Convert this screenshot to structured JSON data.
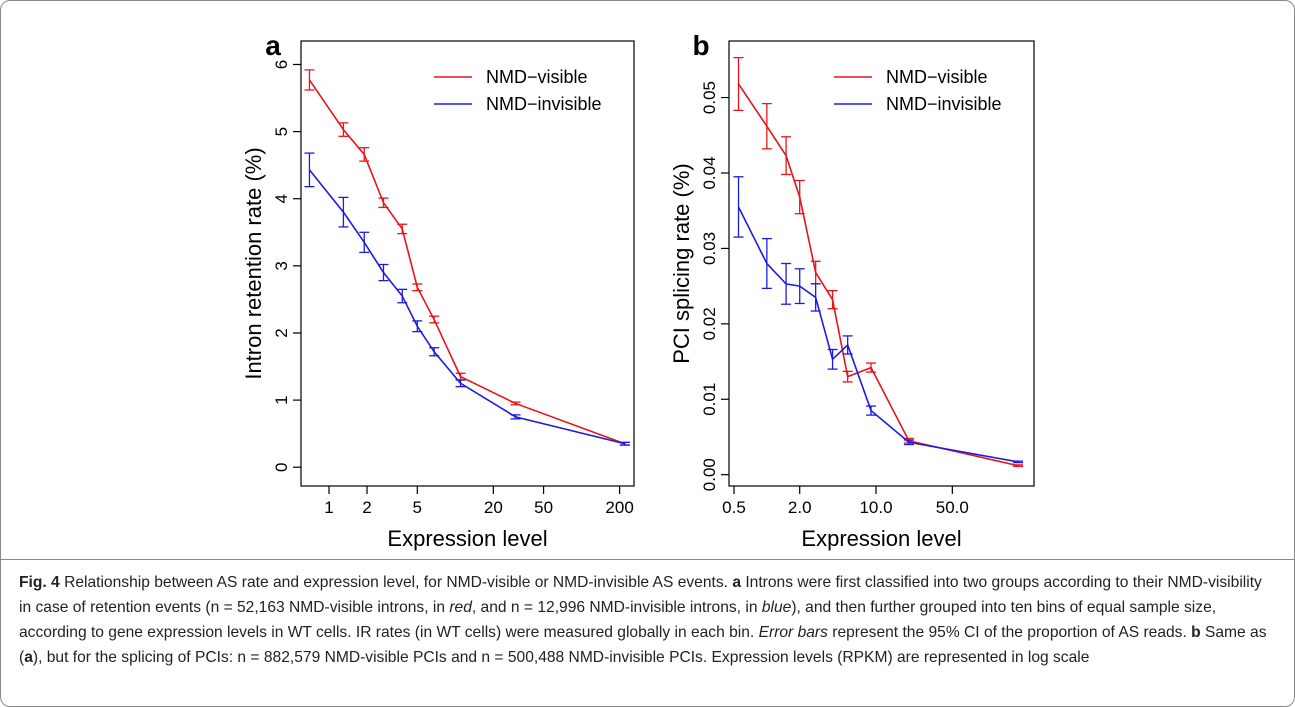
{
  "chart_data": [
    {
      "type": "line",
      "panel_label": "a",
      "y_label": "Intron retention rate (%)",
      "x_label": "Expression level",
      "x": [
        0.7,
        1.3,
        1.9,
        2.7,
        3.8,
        5.0,
        6.8,
        11,
        30,
        220
      ],
      "series": [
        {
          "name": "NMD−visible",
          "color": "#e8141c",
          "values": [
            5.77,
            5.03,
            4.66,
            3.94,
            3.55,
            2.68,
            2.2,
            1.35,
            0.95,
            0.35
          ],
          "errors": [
            0.15,
            0.1,
            0.1,
            0.07,
            0.07,
            0.05,
            0.05,
            0.05,
            0.02,
            0.02
          ]
        },
        {
          "name": "NMD−invisible",
          "color": "#1c1ce0",
          "values": [
            4.43,
            3.8,
            3.35,
            2.9,
            2.55,
            2.1,
            1.72,
            1.25,
            0.75,
            0.35
          ],
          "errors": [
            0.25,
            0.22,
            0.15,
            0.12,
            0.1,
            0.08,
            0.06,
            0.05,
            0.03,
            0.02
          ]
        }
      ],
      "xlog": true,
      "xlim": [
        0.6,
        260
      ],
      "xticks": [
        1,
        2,
        5,
        20,
        50,
        200
      ],
      "ylim": [
        -0.28,
        6.35
      ],
      "yticks": [
        0,
        1,
        2,
        3,
        4,
        5,
        6
      ],
      "legend": "top-right"
    },
    {
      "type": "line",
      "panel_label": "b",
      "y_label": "PCI splicing rate (%)",
      "x_label": "Expression level",
      "x": [
        0.55,
        1.0,
        1.5,
        2.0,
        2.8,
        4.0,
        5.5,
        9.0,
        20,
        200
      ],
      "series": [
        {
          "name": "NMD−visible",
          "color": "#e8141c",
          "values": [
            0.0518,
            0.0462,
            0.0423,
            0.0368,
            0.0268,
            0.0232,
            0.013,
            0.0142,
            0.0045,
            0.0012
          ],
          "errors": [
            0.0035,
            0.003,
            0.0025,
            0.0022,
            0.0015,
            0.0012,
            0.0007,
            0.0006,
            0.0003,
            0.0001
          ]
        },
        {
          "name": "NMD−invisible",
          "color": "#1c1ce0",
          "values": [
            0.0355,
            0.028,
            0.0253,
            0.025,
            0.0235,
            0.0153,
            0.0172,
            0.0085,
            0.0043,
            0.0017
          ],
          "errors": [
            0.004,
            0.0033,
            0.0027,
            0.0023,
            0.0018,
            0.0013,
            0.0012,
            0.0006,
            0.0003,
            0.0001
          ]
        }
      ],
      "xlog": true,
      "xlim": [
        0.45,
        280
      ],
      "xticks": [
        0.5,
        {
          "value": 2,
          "label": "2.0"
        },
        {
          "value": 10,
          "label": "10.0"
        },
        {
          "value": 50,
          "label": "50.0"
        }
      ],
      "ylim": [
        -0.0015,
        0.0575
      ],
      "yticks": [
        {
          "value": 0,
          "label": "0.00"
        },
        {
          "value": 0.01,
          "label": "0.01"
        },
        {
          "value": 0.02,
          "label": "0.02"
        },
        {
          "value": 0.03,
          "label": "0.03"
        },
        {
          "value": 0.04,
          "label": "0.04"
        },
        {
          "value": 0.05,
          "label": "0.05"
        }
      ],
      "legend": "top-right"
    }
  ],
  "caption": {
    "runs": [
      {
        "text": "Fig. 4",
        "style": "bold"
      },
      {
        "text": " Relationship between AS rate and expression level, for NMD-visible or NMD-invisible AS events. "
      },
      {
        "text": "a",
        "style": "bold"
      },
      {
        "text": " Introns were first classified into two groups according to their NMD-visibility in case of retention events (n = 52,163 NMD-visible introns, in "
      },
      {
        "text": "red",
        "style": "italic"
      },
      {
        "text": ", and n = 12,996 NMD-invisible introns, in "
      },
      {
        "text": "blue",
        "style": "italic"
      },
      {
        "text": "), and then further grouped into ten bins of equal sample size, according to gene expression levels in WT cells. IR rates (in WT cells) were measured globally in each bin. "
      },
      {
        "text": "Error bars",
        "style": "italic"
      },
      {
        "text": " represent the 95% CI of the proportion of AS reads. "
      },
      {
        "text": "b",
        "style": "bold"
      },
      {
        "text": " Same as ("
      },
      {
        "text": "a",
        "style": "bold"
      },
      {
        "text": "), but for the splicing of PCIs: n = 882,579 NMD-visible PCIs and n = 500,488 NMD-invisible PCIs. Expression levels (RPKM) are represented in log scale"
      }
    ]
  }
}
